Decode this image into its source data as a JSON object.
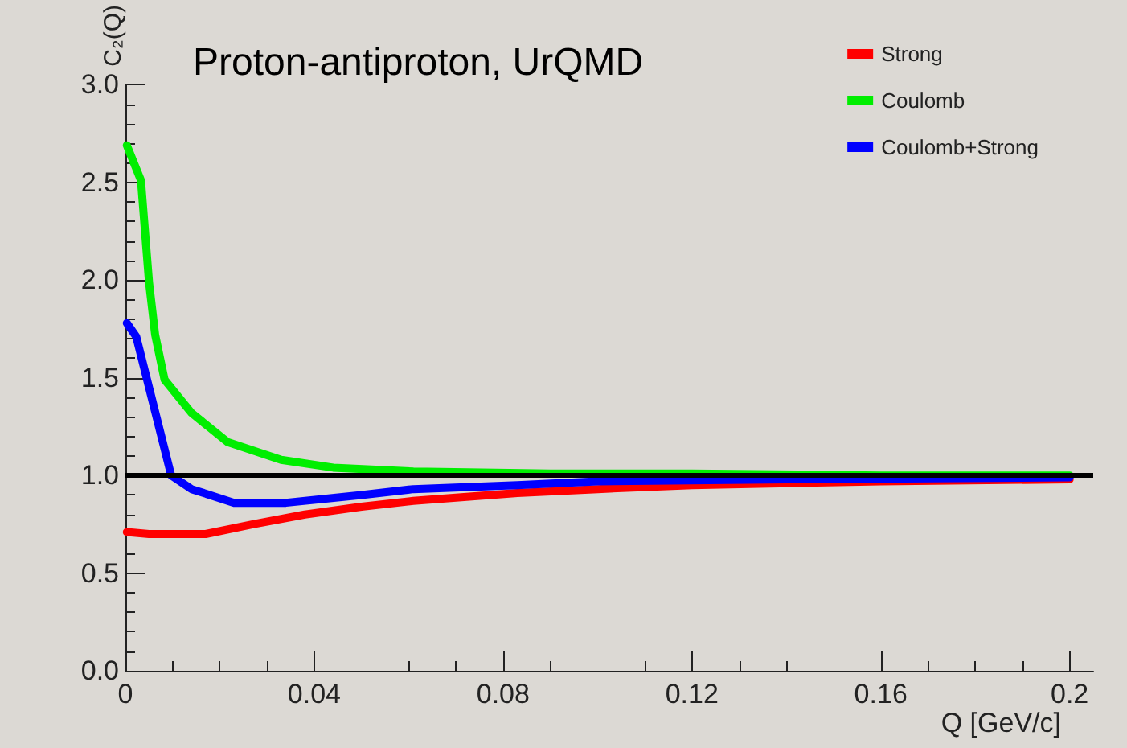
{
  "chart_data": {
    "type": "line",
    "title": "Proton-antiproton, UrQMD",
    "xlabel": "Q [GeV/c]",
    "ylabel": "C₂(Q)",
    "xlim": [
      0,
      0.205
    ],
    "xticks": [
      0,
      0.04,
      0.08,
      0.12,
      0.16,
      0.2
    ],
    "ylim": [
      0,
      3
    ],
    "yticks": [
      {
        "value": 0,
        "label": "0.0"
      },
      {
        "value": 0.5,
        "label": "0.5"
      },
      {
        "value": 1,
        "label": "1.0"
      },
      {
        "value": 1.5,
        "label": "1.5"
      },
      {
        "value": 2,
        "label": "2.0"
      },
      {
        "value": 2.5,
        "label": "2.5"
      },
      {
        "value": 3,
        "label": "3.0"
      }
    ],
    "grid": false,
    "legend": "top right",
    "marker": "none",
    "line_style": "solid",
    "ref_lines": [
      {
        "axis": "y",
        "value": 1,
        "color": "#000000"
      }
    ],
    "series": [
      {
        "name": "Strong",
        "color": "#ff0000",
        "x": [
          0.0003,
          0.005,
          0.017,
          0.027,
          0.038,
          0.05,
          0.061,
          0.083,
          0.1,
          0.12,
          0.16,
          0.2
        ],
        "values": [
          0.71,
          0.7,
          0.7,
          0.75,
          0.8,
          0.84,
          0.87,
          0.91,
          0.93,
          0.95,
          0.97,
          0.98
        ]
      },
      {
        "name": "Coulomb",
        "color": "#00ee00",
        "x": [
          0.0003,
          0.0033,
          0.005,
          0.0063,
          0.0083,
          0.014,
          0.0217,
          0.033,
          0.044,
          0.061,
          0.09,
          0.12,
          0.16,
          0.2
        ],
        "values": [
          2.69,
          2.51,
          1.99,
          1.72,
          1.49,
          1.32,
          1.17,
          1.08,
          1.04,
          1.02,
          1.01,
          1.01,
          1.0,
          1.0
        ]
      },
      {
        "name": "Coulomb+Strong",
        "color": "#0000ff",
        "x": [
          0.0003,
          0.0023,
          0.0097,
          0.014,
          0.023,
          0.034,
          0.05,
          0.061,
          0.083,
          0.1,
          0.14,
          0.2
        ],
        "values": [
          1.78,
          1.71,
          1.0,
          0.93,
          0.86,
          0.86,
          0.9,
          0.93,
          0.95,
          0.97,
          0.98,
          0.99
        ]
      }
    ]
  }
}
